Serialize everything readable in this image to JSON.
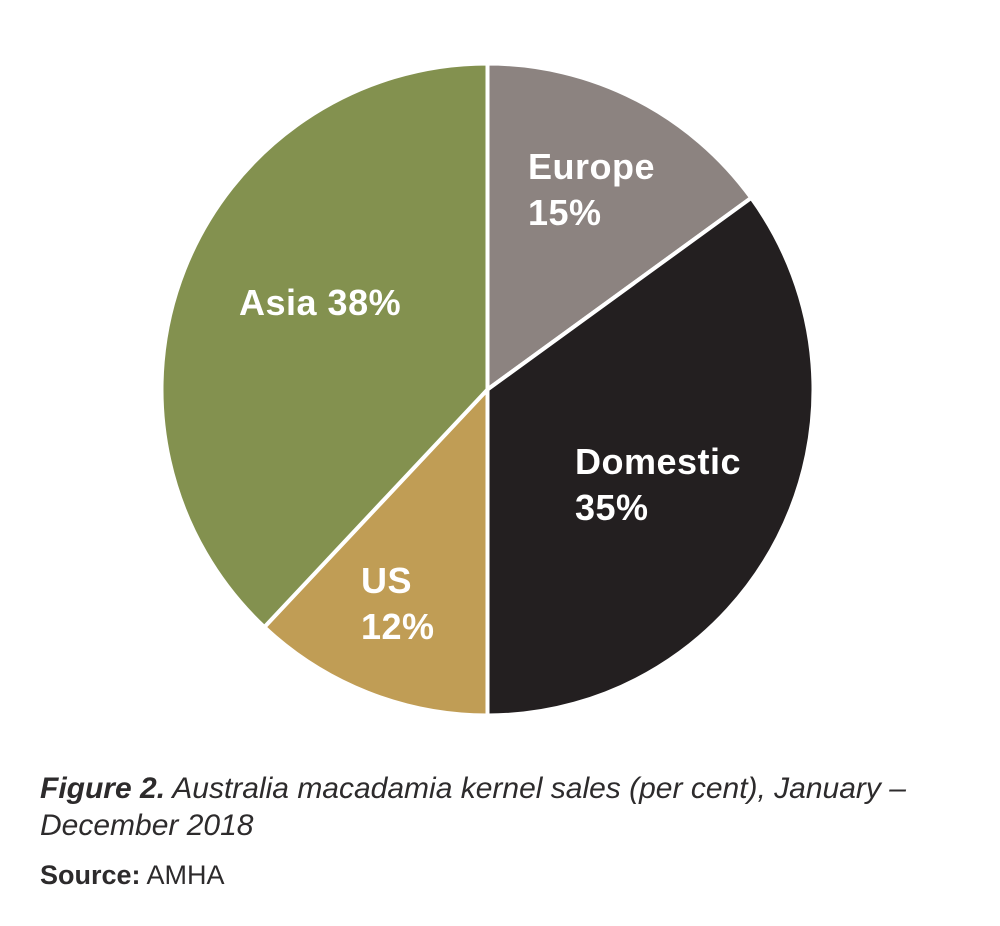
{
  "chart_data": {
    "type": "pie",
    "title": "Australia macadamia kernel sales (per cent), January – December 2018",
    "source": "AMHA",
    "start_angle_deg": 0,
    "direction": "clockwise",
    "legend_position": "none",
    "label_text_color": "#FFFFFF",
    "slice_gap_color": "#FFFFFF",
    "slices": [
      {
        "name": "Europe",
        "value": 15,
        "color": "#8C8380",
        "label_lines": [
          "Europe",
          "15%"
        ]
      },
      {
        "name": "Domestic",
        "value": 35,
        "color": "#231F20",
        "label_lines": [
          "Domestic",
          "35%"
        ]
      },
      {
        "name": "US",
        "value": 12,
        "color": "#C09D55",
        "label_lines": [
          "US",
          "12%"
        ]
      },
      {
        "name": "Asia",
        "value": 38,
        "color": "#83914F",
        "label_lines": [
          "Asia 38%"
        ]
      }
    ]
  },
  "caption": {
    "figure_label": "Figure 2.",
    "figure_text": "Australia macadamia kernel sales (per cent), January – December 2018"
  },
  "source_line": {
    "label": "Source:",
    "text": "AMHA"
  }
}
